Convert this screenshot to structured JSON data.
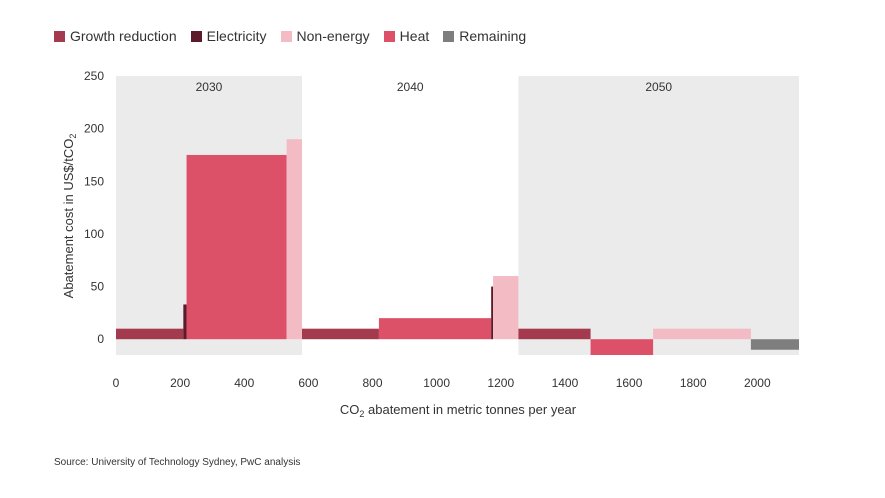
{
  "legend": [
    {
      "label": "Growth reduction",
      "color": "#a43a4e"
    },
    {
      "label": "Electricity",
      "color": "#5c1a2a"
    },
    {
      "label": "Non-energy",
      "color": "#f3bcc5"
    },
    {
      "label": "Heat",
      "color": "#dc5068"
    },
    {
      "label": "Remaining",
      "color": "#7e7e7e"
    }
  ],
  "source": "Source: University of Technology Sydney, PwC analysis",
  "chart_data": {
    "type": "bar",
    "subtype": "marginal-abatement-cost-curve",
    "xlabel_main": "CO",
    "xlabel_sub": "2",
    "xlabel_rest": " abatement in metric tonnes per year",
    "ylabel_main": "Abatement cost in US$/tCO",
    "ylabel_sub": "2",
    "xlim": [
      0,
      2130
    ],
    "ylim": [
      -15,
      250
    ],
    "xticks": [
      0,
      200,
      400,
      600,
      800,
      1000,
      1200,
      1400,
      1600,
      1800,
      2000
    ],
    "yticks": [
      0,
      50,
      100,
      150,
      200,
      250
    ],
    "grid": false,
    "legend_position": "top-left",
    "periods": [
      {
        "label": "2030",
        "x_start": 0,
        "x_end": 580,
        "shaded": true
      },
      {
        "label": "2040",
        "x_start": 580,
        "x_end": 1255,
        "shaded": false
      },
      {
        "label": "2050",
        "x_start": 1255,
        "x_end": 2130,
        "shaded": true
      }
    ],
    "bars": [
      {
        "series": "Growth reduction",
        "period": "2030",
        "x_start": 0,
        "x_end": 210,
        "value": 10
      },
      {
        "series": "Electricity",
        "period": "2030",
        "x_start": 210,
        "x_end": 220,
        "value": 33
      },
      {
        "series": "Heat",
        "period": "2030",
        "x_start": 220,
        "x_end": 532,
        "value": 175
      },
      {
        "series": "Non-energy",
        "period": "2030",
        "x_start": 532,
        "x_end": 580,
        "value": 190
      },
      {
        "series": "Growth reduction",
        "period": "2040",
        "x_start": 580,
        "x_end": 820,
        "value": 10
      },
      {
        "series": "Heat",
        "period": "2040",
        "x_start": 820,
        "x_end": 1170,
        "value": 20
      },
      {
        "series": "Electricity",
        "period": "2040",
        "x_start": 1170,
        "x_end": 1176,
        "value": 50
      },
      {
        "series": "Non-energy",
        "period": "2040",
        "x_start": 1176,
        "x_end": 1255,
        "value": 60
      },
      {
        "series": "Growth reduction",
        "period": "2050",
        "x_start": 1255,
        "x_end": 1480,
        "value": 10
      },
      {
        "series": "Heat",
        "period": "2050",
        "x_start": 1480,
        "x_end": 1675,
        "value": -15
      },
      {
        "series": "Non-energy",
        "period": "2050",
        "x_start": 1675,
        "x_end": 1980,
        "value": 10
      },
      {
        "series": "Remaining",
        "period": "2050",
        "x_start": 1980,
        "x_end": 2130,
        "value": -10
      }
    ]
  }
}
